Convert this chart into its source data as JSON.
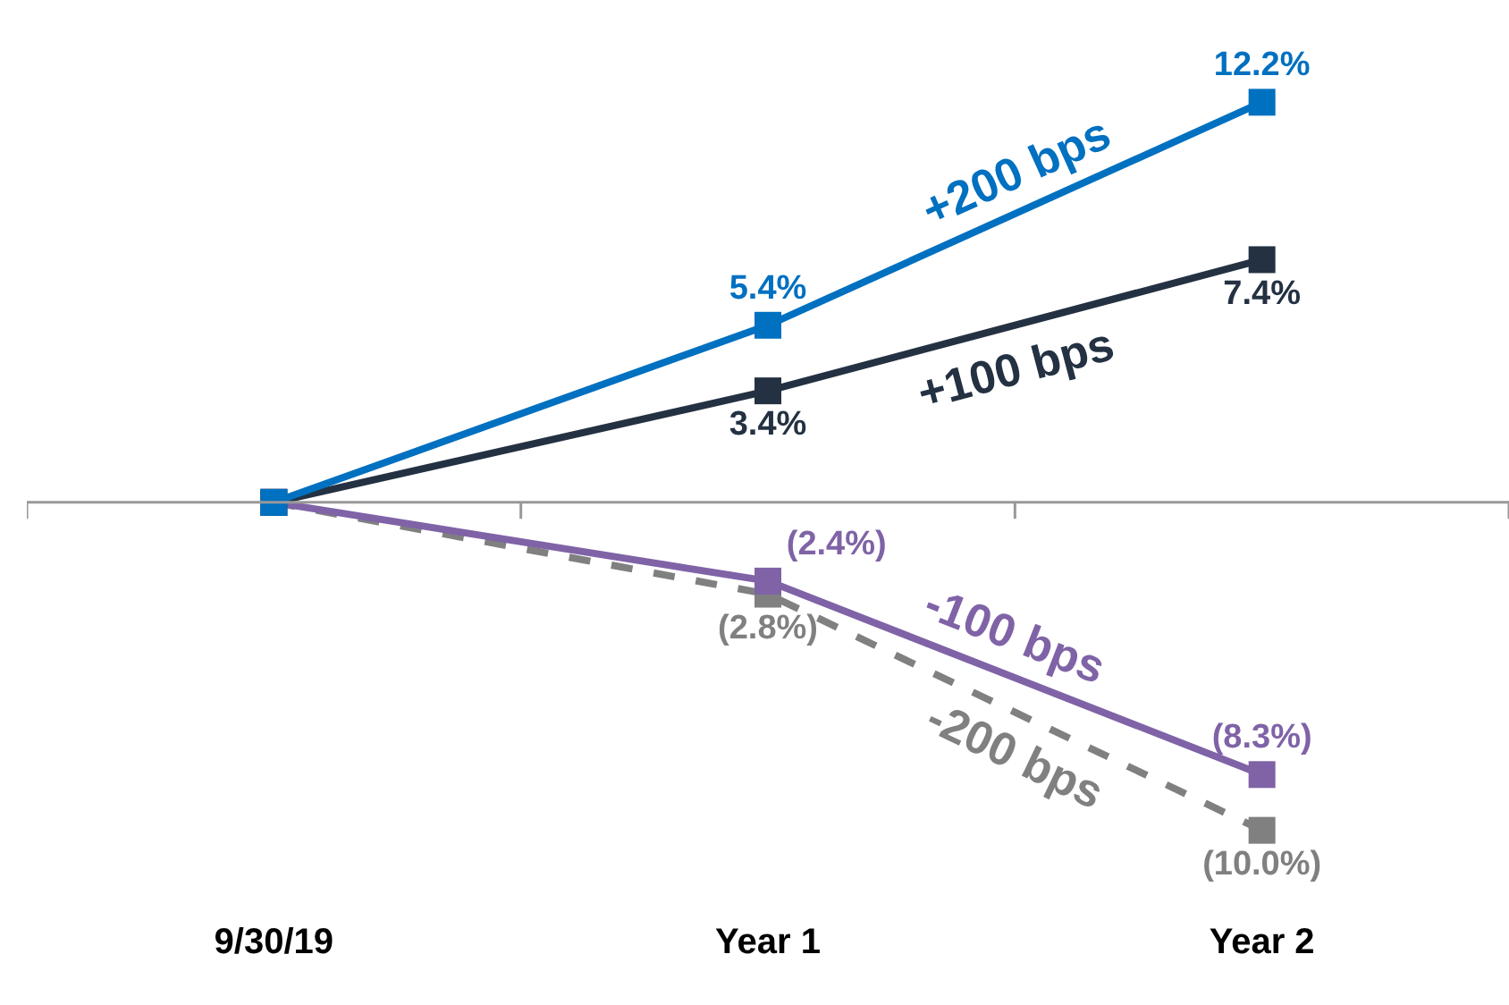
{
  "chart_data": {
    "type": "line",
    "categories": [
      "9/30/19",
      "Year 1",
      "Year 2"
    ],
    "series": [
      {
        "name": "+200 bps",
        "color": "#0070c0",
        "values": [
          0,
          5.4,
          12.2
        ],
        "value_labels": [
          null,
          "5.4%",
          "12.2%"
        ],
        "line_style": "solid"
      },
      {
        "name": "+100 bps",
        "color": "#243142",
        "values": [
          0,
          3.4,
          7.4
        ],
        "value_labels": [
          null,
          "3.4%",
          "7.4%"
        ],
        "line_style": "solid"
      },
      {
        "name": "-100 bps",
        "color": "#7f63a6",
        "values": [
          0,
          -2.4,
          -8.3
        ],
        "value_labels": [
          null,
          "(2.4%)",
          "(8.3%)"
        ],
        "line_style": "solid"
      },
      {
        "name": "-200 bps",
        "color": "#808080",
        "values": [
          0,
          -2.8,
          -10.0
        ],
        "value_labels": [
          null,
          "(2.8%)",
          "(10.0%)"
        ],
        "line_style": "dashed"
      }
    ],
    "marker": "square",
    "legend": false
  }
}
